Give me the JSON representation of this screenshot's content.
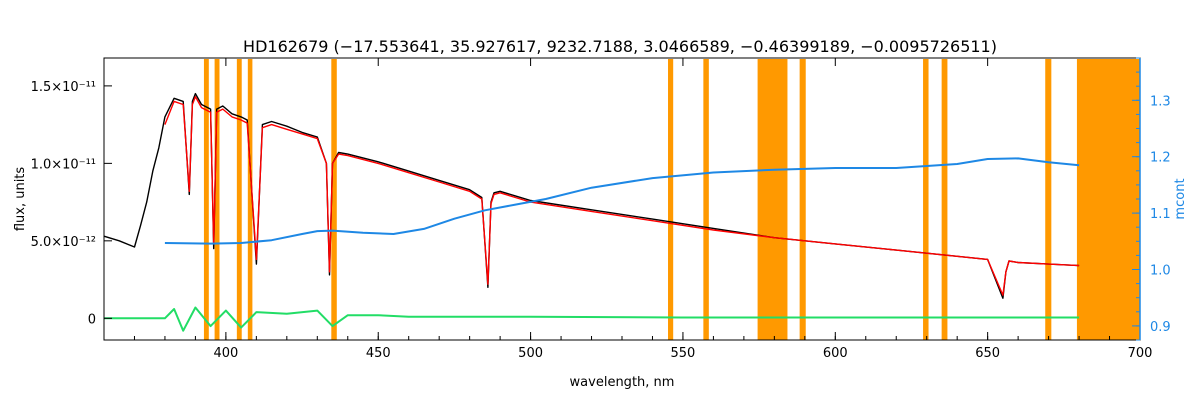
{
  "chart_data": {
    "type": "line",
    "title": "HD162679    (−17.553641, 35.927617, 9232.7188, 3.0466589, −0.46399189, −0.0095726511)",
    "xlabel": "wavelength, nm",
    "ylabel": "flux, units",
    "y2label": "mcont",
    "xlim": [
      360,
      700
    ],
    "ylim": [
      -1.4e-12,
      1.68e-11
    ],
    "y2lim": [
      0.875,
      1.375
    ],
    "x_ticks": [
      {
        "value": 400,
        "label": "400"
      },
      {
        "value": 450,
        "label": "450"
      },
      {
        "value": 500,
        "label": "500"
      },
      {
        "value": 550,
        "label": "550"
      },
      {
        "value": 600,
        "label": "600"
      },
      {
        "value": 650,
        "label": "650"
      },
      {
        "value": 700,
        "label": "700"
      }
    ],
    "y_ticks": [
      {
        "value": 0,
        "label": "0"
      },
      {
        "value": 5e-12,
        "label": "5.0×10⁻¹²"
      },
      {
        "value": 1e-11,
        "label": "1.0×10⁻¹¹"
      },
      {
        "value": 1.5e-11,
        "label": "1.5×10⁻¹¹"
      }
    ],
    "y2_ticks": [
      {
        "value": 0.9,
        "label": "0.9"
      },
      {
        "value": 1.0,
        "label": "1.0"
      },
      {
        "value": 1.1,
        "label": "1.1"
      },
      {
        "value": 1.2,
        "label": "1.2"
      },
      {
        "value": 1.3,
        "label": "1.3"
      }
    ],
    "masked_bands": [
      [
        392.8,
        394.4
      ],
      [
        396.3,
        397.9
      ],
      [
        403.6,
        405.2
      ],
      [
        407.2,
        408.7
      ],
      [
        434.6,
        436.4
      ],
      [
        545.1,
        546.8
      ],
      [
        556.7,
        558.5
      ],
      [
        574.5,
        584.3
      ],
      [
        588.3,
        590.3
      ],
      [
        628.8,
        630.6
      ],
      [
        634.9,
        636.8
      ],
      [
        668.9,
        670.9
      ],
      [
        679.3,
        700
      ]
    ],
    "series": [
      {
        "color": "#000000",
        "x": [
          360,
          365,
          370,
          372,
          374,
          376,
          378,
          380,
          383,
          386,
          388,
          389,
          390,
          392,
          395,
          396,
          397,
          399,
          402,
          405,
          407,
          410,
          412,
          415,
          420,
          425,
          430,
          433,
          434,
          435,
          437,
          440,
          450,
          460,
          470,
          480,
          484,
          486,
          487,
          488,
          490,
          495,
          500,
          520,
          540,
          560,
          580,
          600,
          620,
          640,
          650,
          655,
          656,
          657,
          660,
          670,
          680
        ],
        "y": [
          5.3e-12,
          5e-12,
          4.6e-12,
          6e-12,
          7.5e-12,
          9.5e-12,
          1.1e-11,
          1.3e-11,
          1.42e-11,
          1.4e-11,
          8e-12,
          1.4e-11,
          1.45e-11,
          1.38e-11,
          1.35e-11,
          4.5e-12,
          1.35e-11,
          1.37e-11,
          1.32e-11,
          1.3e-11,
          1.28e-11,
          3.5e-12,
          1.25e-11,
          1.27e-11,
          1.24e-11,
          1.2e-11,
          1.17e-11,
          1e-11,
          2.8e-12,
          1e-11,
          1.07e-11,
          1.06e-11,
          1.01e-11,
          9.5e-12,
          8.9e-12,
          8.3e-12,
          7.8e-12,
          2e-12,
          7.5e-12,
          8.1e-12,
          8.2e-12,
          7.9e-12,
          7.6e-12,
          7e-12,
          6.4e-12,
          5.8e-12,
          5.2e-12,
          4.8e-12,
          4.4e-12,
          4e-12,
          3.8e-12,
          1.3e-12,
          3e-12,
          3.7e-12,
          3.6e-12,
          3.5e-12,
          3.4e-12
        ]
      },
      {
        "color": "#ff0000",
        "x": [
          380,
          383,
          386,
          388,
          389,
          390,
          392,
          395,
          396,
          397,
          399,
          402,
          405,
          407,
          410,
          412,
          415,
          420,
          425,
          430,
          433,
          434,
          435,
          437,
          440,
          450,
          460,
          470,
          480,
          484,
          486,
          487,
          488,
          490,
          495,
          500,
          520,
          540,
          560,
          580,
          600,
          620,
          640,
          650,
          655,
          656,
          657,
          660,
          670,
          680
        ],
        "y": [
          1.25e-11,
          1.4e-11,
          1.38e-11,
          8.2e-12,
          1.38e-11,
          1.43e-11,
          1.36e-11,
          1.33e-11,
          4.8e-12,
          1.33e-11,
          1.35e-11,
          1.3e-11,
          1.28e-11,
          1.26e-11,
          3.8e-12,
          1.23e-11,
          1.25e-11,
          1.22e-11,
          1.19e-11,
          1.16e-11,
          1e-11,
          3e-12,
          1e-11,
          1.06e-11,
          1.05e-11,
          1e-11,
          9.4e-12,
          8.8e-12,
          8.2e-12,
          7.7e-12,
          2.2e-12,
          7.4e-12,
          8e-12,
          8.1e-12,
          7.8e-12,
          7.5e-12,
          6.9e-12,
          6.3e-12,
          5.7e-12,
          5.2e-12,
          4.8e-12,
          4.4e-12,
          4e-12,
          3.8e-12,
          1.5e-12,
          3e-12,
          3.7e-12,
          3.6e-12,
          3.5e-12,
          3.4e-12
        ]
      },
      {
        "color": "#1e88e5",
        "axis": "right",
        "x": [
          380,
          395,
          405,
          415,
          425,
          430,
          435,
          445,
          455,
          465,
          475,
          485,
          495,
          505,
          520,
          540,
          560,
          580,
          600,
          620,
          640,
          650,
          660,
          670,
          680
        ],
        "y": [
          1.047,
          1.046,
          1.047,
          1.052,
          1.063,
          1.068,
          1.069,
          1.065,
          1.063,
          1.072,
          1.09,
          1.105,
          1.115,
          1.125,
          1.145,
          1.162,
          1.172,
          1.177,
          1.18,
          1.18,
          1.187,
          1.196,
          1.197,
          1.19,
          1.185
        ]
      },
      {
        "color": "#22dd66",
        "x": [
          360,
          380,
          383,
          386,
          390,
          395,
          400,
          405,
          410,
          420,
          430,
          435,
          440,
          450,
          460,
          480,
          500,
          550,
          600,
          650,
          680
        ],
        "y": [
          0,
          0,
          6e-13,
          -8e-13,
          7e-13,
          -5e-13,
          5e-13,
          -6e-13,
          4e-13,
          3e-13,
          5e-13,
          -5e-13,
          2e-13,
          2e-13,
          1e-13,
          1e-13,
          1e-13,
          5e-14,
          5e-14,
          5e-14,
          5e-14
        ]
      }
    ]
  }
}
